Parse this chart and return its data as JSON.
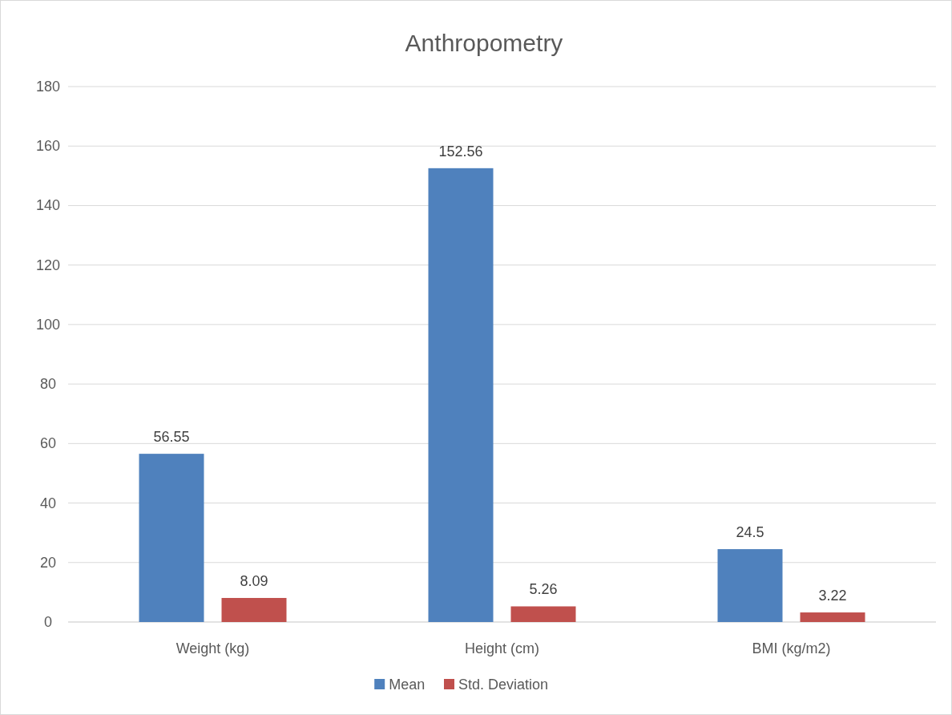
{
  "chart_data": {
    "type": "bar",
    "title": "Anthropometry",
    "categories": [
      "Weight (kg)",
      "Height (cm)",
      "BMI (kg/m2)"
    ],
    "series": [
      {
        "name": "Mean",
        "color": "#4f81bd",
        "values": [
          56.55,
          152.56,
          24.5
        ]
      },
      {
        "name": "Std. Deviation",
        "color": "#c0504d",
        "values": [
          8.09,
          5.26,
          3.22
        ]
      }
    ],
    "ylim": [
      0,
      180
    ],
    "yticks": [
      0,
      20,
      40,
      60,
      80,
      100,
      120,
      140,
      160,
      180
    ],
    "grid": "y",
    "legend": "bottom",
    "data_labels": true
  }
}
